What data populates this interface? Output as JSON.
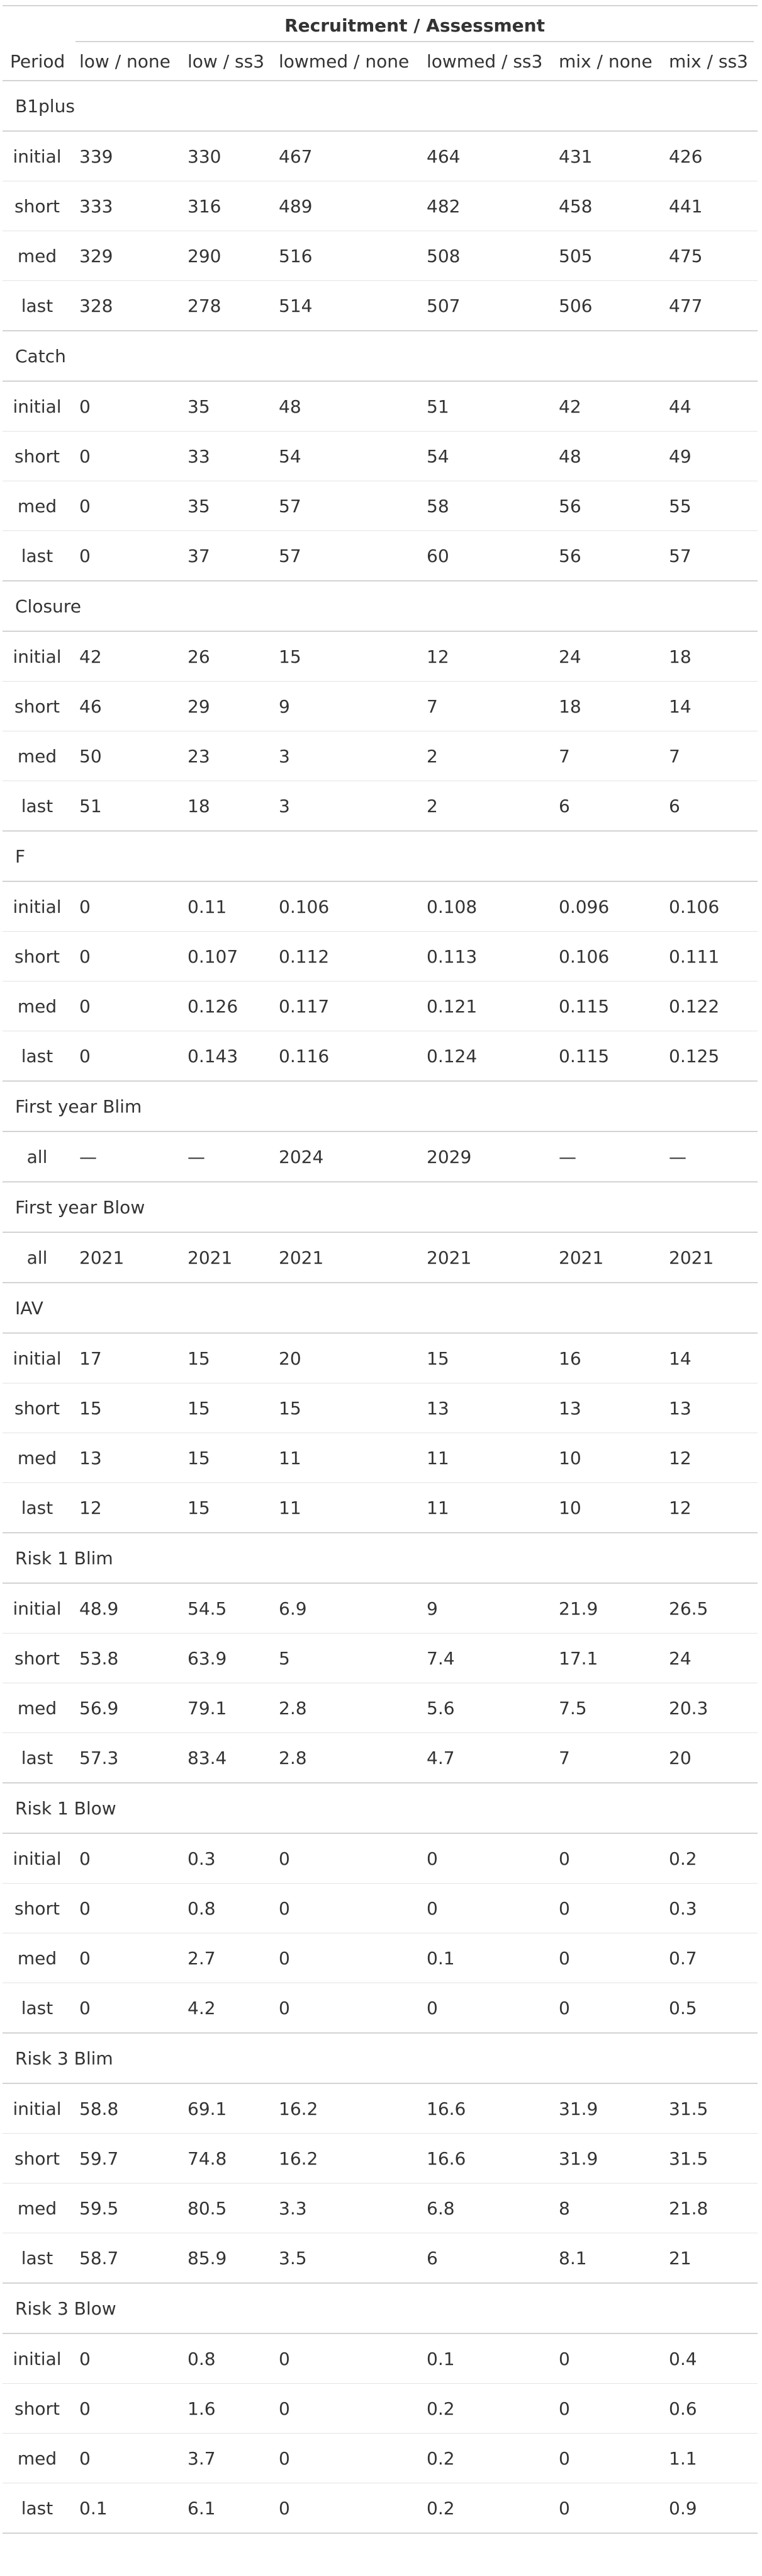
{
  "table": {
    "spanner": "Recruitment / Assessment",
    "period_header": "Period",
    "columns": [
      "low / none",
      "low / ss3",
      "lowmed / none",
      "lowmed / ss3",
      "mix / none",
      "mix / ss3"
    ],
    "groups": [
      {
        "name": "B1plus",
        "rows": [
          {
            "period": "initial",
            "values": [
              "339",
              "330",
              "467",
              "464",
              "431",
              "426"
            ]
          },
          {
            "period": "short",
            "values": [
              "333",
              "316",
              "489",
              "482",
              "458",
              "441"
            ]
          },
          {
            "period": "med",
            "values": [
              "329",
              "290",
              "516",
              "508",
              "505",
              "475"
            ]
          },
          {
            "period": "last",
            "values": [
              "328",
              "278",
              "514",
              "507",
              "506",
              "477"
            ]
          }
        ]
      },
      {
        "name": "Catch",
        "rows": [
          {
            "period": "initial",
            "values": [
              "0",
              "35",
              "48",
              "51",
              "42",
              "44"
            ]
          },
          {
            "period": "short",
            "values": [
              "0",
              "33",
              "54",
              "54",
              "48",
              "49"
            ]
          },
          {
            "period": "med",
            "values": [
              "0",
              "35",
              "57",
              "58",
              "56",
              "55"
            ]
          },
          {
            "period": "last",
            "values": [
              "0",
              "37",
              "57",
              "60",
              "56",
              "57"
            ]
          }
        ]
      },
      {
        "name": "Closure",
        "rows": [
          {
            "period": "initial",
            "values": [
              "42",
              "26",
              "15",
              "12",
              "24",
              "18"
            ]
          },
          {
            "period": "short",
            "values": [
              "46",
              "29",
              "9",
              "7",
              "18",
              "14"
            ]
          },
          {
            "period": "med",
            "values": [
              "50",
              "23",
              "3",
              "2",
              "7",
              "7"
            ]
          },
          {
            "period": "last",
            "values": [
              "51",
              "18",
              "3",
              "2",
              "6",
              "6"
            ]
          }
        ]
      },
      {
        "name": "F",
        "rows": [
          {
            "period": "initial",
            "values": [
              "0",
              "0.11",
              "0.106",
              "0.108",
              "0.096",
              "0.106"
            ]
          },
          {
            "period": "short",
            "values": [
              "0",
              "0.107",
              "0.112",
              "0.113",
              "0.106",
              "0.111"
            ]
          },
          {
            "period": "med",
            "values": [
              "0",
              "0.126",
              "0.117",
              "0.121",
              "0.115",
              "0.122"
            ]
          },
          {
            "period": "last",
            "values": [
              "0",
              "0.143",
              "0.116",
              "0.124",
              "0.115",
              "0.125"
            ]
          }
        ]
      },
      {
        "name": "First year Blim",
        "rows": [
          {
            "period": "all",
            "values": [
              "—",
              "—",
              "2024",
              "2029",
              "—",
              "—"
            ]
          }
        ]
      },
      {
        "name": "First year Blow",
        "rows": [
          {
            "period": "all",
            "values": [
              "2021",
              "2021",
              "2021",
              "2021",
              "2021",
              "2021"
            ]
          }
        ]
      },
      {
        "name": "IAV",
        "rows": [
          {
            "period": "initial",
            "values": [
              "17",
              "15",
              "20",
              "15",
              "16",
              "14"
            ]
          },
          {
            "period": "short",
            "values": [
              "15",
              "15",
              "15",
              "13",
              "13",
              "13"
            ]
          },
          {
            "period": "med",
            "values": [
              "13",
              "15",
              "11",
              "11",
              "10",
              "12"
            ]
          },
          {
            "period": "last",
            "values": [
              "12",
              "15",
              "11",
              "11",
              "10",
              "12"
            ]
          }
        ]
      },
      {
        "name": "Risk 1 Blim",
        "rows": [
          {
            "period": "initial",
            "values": [
              "48.9",
              "54.5",
              "6.9",
              "9",
              "21.9",
              "26.5"
            ]
          },
          {
            "period": "short",
            "values": [
              "53.8",
              "63.9",
              "5",
              "7.4",
              "17.1",
              "24"
            ]
          },
          {
            "period": "med",
            "values": [
              "56.9",
              "79.1",
              "2.8",
              "5.6",
              "7.5",
              "20.3"
            ]
          },
          {
            "period": "last",
            "values": [
              "57.3",
              "83.4",
              "2.8",
              "4.7",
              "7",
              "20"
            ]
          }
        ]
      },
      {
        "name": "Risk 1 Blow",
        "rows": [
          {
            "period": "initial",
            "values": [
              "0",
              "0.3",
              "0",
              "0",
              "0",
              "0.2"
            ]
          },
          {
            "period": "short",
            "values": [
              "0",
              "0.8",
              "0",
              "0",
              "0",
              "0.3"
            ]
          },
          {
            "period": "med",
            "values": [
              "0",
              "2.7",
              "0",
              "0.1",
              "0",
              "0.7"
            ]
          },
          {
            "period": "last",
            "values": [
              "0",
              "4.2",
              "0",
              "0",
              "0",
              "0.5"
            ]
          }
        ]
      },
      {
        "name": "Risk 3 Blim",
        "rows": [
          {
            "period": "initial",
            "values": [
              "58.8",
              "69.1",
              "16.2",
              "16.6",
              "31.9",
              "31.5"
            ]
          },
          {
            "period": "short",
            "values": [
              "59.7",
              "74.8",
              "16.2",
              "16.6",
              "31.9",
              "31.5"
            ]
          },
          {
            "period": "med",
            "values": [
              "59.5",
              "80.5",
              "3.3",
              "6.8",
              "8",
              "21.8"
            ]
          },
          {
            "period": "last",
            "values": [
              "58.7",
              "85.9",
              "3.5",
              "6",
              "8.1",
              "21"
            ]
          }
        ]
      },
      {
        "name": "Risk 3 Blow",
        "rows": [
          {
            "period": "initial",
            "values": [
              "0",
              "0.8",
              "0",
              "0.1",
              "0",
              "0.4"
            ]
          },
          {
            "period": "short",
            "values": [
              "0",
              "1.6",
              "0",
              "0.2",
              "0",
              "0.6"
            ]
          },
          {
            "period": "med",
            "values": [
              "0",
              "3.7",
              "0",
              "0.2",
              "0",
              "1.1"
            ]
          },
          {
            "period": "last",
            "values": [
              "0.1",
              "6.1",
              "0",
              "0.2",
              "0",
              "0.9"
            ]
          }
        ]
      }
    ]
  }
}
